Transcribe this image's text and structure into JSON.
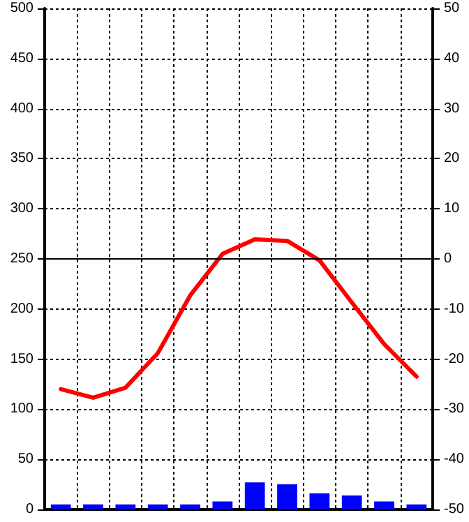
{
  "chart_data": {
    "type": "bar",
    "categories": [
      null,
      null,
      null,
      null,
      null,
      null,
      null,
      null,
      null,
      null,
      null,
      null
    ],
    "series": [
      {
        "color": "#0000ff",
        "values": [
          5,
          5,
          5,
          5,
          5,
          8,
          27,
          25,
          16,
          14,
          8,
          5
        ]
      },
      {
        "type": "line",
        "axis": "y2",
        "color": "#ff0000",
        "values": [
          -26,
          -27.7,
          -25.7,
          -18.8,
          -7.3,
          1,
          3.9,
          3.6,
          -0.3,
          -8.7,
          -17,
          -23.5
        ]
      }
    ],
    "ylim": [
      0,
      500
    ],
    "yticks": [
      0,
      50,
      100,
      150,
      200,
      250,
      300,
      350,
      400,
      450,
      500
    ],
    "y2lim": [
      -50,
      50
    ],
    "y2ticks": [
      -50,
      -40,
      -30,
      -20,
      -10,
      0,
      10,
      20,
      30,
      40,
      50
    ],
    "ref_lines": [
      {
        "axis": "y2",
        "value": 0,
        "color": "#000000",
        "line_style": "solid"
      }
    ],
    "grid": true,
    "marker": "none"
  }
}
